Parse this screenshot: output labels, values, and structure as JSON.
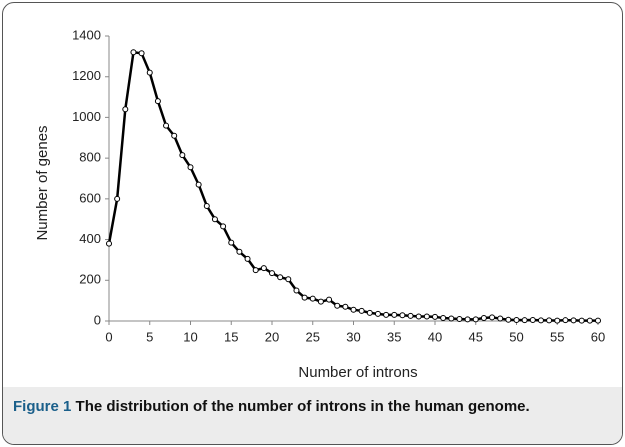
{
  "chart_data": {
    "type": "line",
    "x_label": "Number of introns",
    "y_label": "Number of genes",
    "x": [
      0,
      1,
      2,
      3,
      4,
      5,
      6,
      7,
      8,
      9,
      10,
      11,
      12,
      13,
      14,
      15,
      16,
      17,
      18,
      19,
      20,
      21,
      22,
      23,
      24,
      25,
      26,
      27,
      28,
      29,
      30,
      31,
      32,
      33,
      34,
      35,
      36,
      37,
      38,
      39,
      40,
      41,
      42,
      43,
      44,
      45,
      46,
      47,
      48,
      49,
      50,
      51,
      52,
      53,
      54,
      55,
      56,
      57,
      58,
      59,
      60
    ],
    "series": [
      {
        "color": "#000000",
        "values": [
          380,
          600,
          1040,
          1320,
          1315,
          1220,
          1080,
          960,
          910,
          815,
          755,
          670,
          565,
          500,
          465,
          385,
          340,
          305,
          250,
          260,
          235,
          215,
          205,
          150,
          115,
          110,
          95,
          105,
          75,
          70,
          55,
          50,
          40,
          35,
          30,
          30,
          28,
          25,
          22,
          22,
          20,
          15,
          12,
          10,
          8,
          8,
          15,
          18,
          12,
          6,
          5,
          4,
          5,
          3,
          3,
          2,
          4,
          3,
          2,
          2,
          2
        ]
      }
    ],
    "xlim": [
      0,
      60
    ],
    "xticks": [
      0,
      5,
      10,
      15,
      20,
      25,
      30,
      35,
      40,
      45,
      50,
      55,
      60
    ],
    "ylim": [
      0,
      1400
    ],
    "yticks": [
      0,
      200,
      400,
      600,
      800,
      1000,
      1200,
      1400
    ],
    "grid": false
  },
  "caption": {
    "label": "Figure 1",
    "text": "The distribution of the number of introns in the human genome."
  }
}
